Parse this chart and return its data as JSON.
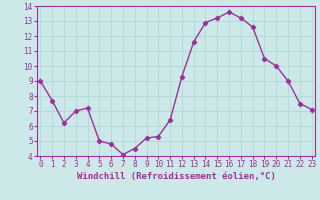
{
  "x": [
    0,
    1,
    2,
    3,
    4,
    5,
    6,
    7,
    8,
    9,
    10,
    11,
    12,
    13,
    14,
    15,
    16,
    17,
    18,
    19,
    20,
    21,
    22,
    23
  ],
  "y": [
    9,
    7.7,
    6.2,
    7,
    7.2,
    5.0,
    4.8,
    4.1,
    4.5,
    5.2,
    5.3,
    6.4,
    9.3,
    11.6,
    12.9,
    13.2,
    13.6,
    13.2,
    12.6,
    10.5,
    10.0,
    9.0,
    7.5,
    7.1
  ],
  "line_color": "#993399",
  "marker": "D",
  "marker_size": 2.2,
  "line_width": 1.0,
  "bg_color": "#cce8e8",
  "grid_color": "#b0d8d8",
  "xlabel": "Windchill (Refroidissement éolien,°C)",
  "xlabel_color": "#993399",
  "tick_color": "#993399",
  "axis_color": "#993399",
  "ylim": [
    4,
    14
  ],
  "xlim": [
    -0.3,
    23.3
  ],
  "yticks": [
    4,
    5,
    6,
    7,
    8,
    9,
    10,
    11,
    12,
    13,
    14
  ],
  "xticks": [
    0,
    1,
    2,
    3,
    4,
    5,
    6,
    7,
    8,
    9,
    10,
    11,
    12,
    13,
    14,
    15,
    16,
    17,
    18,
    19,
    20,
    21,
    22,
    23
  ],
  "tick_fontsize": 5.5,
  "xlabel_fontsize": 6.5
}
